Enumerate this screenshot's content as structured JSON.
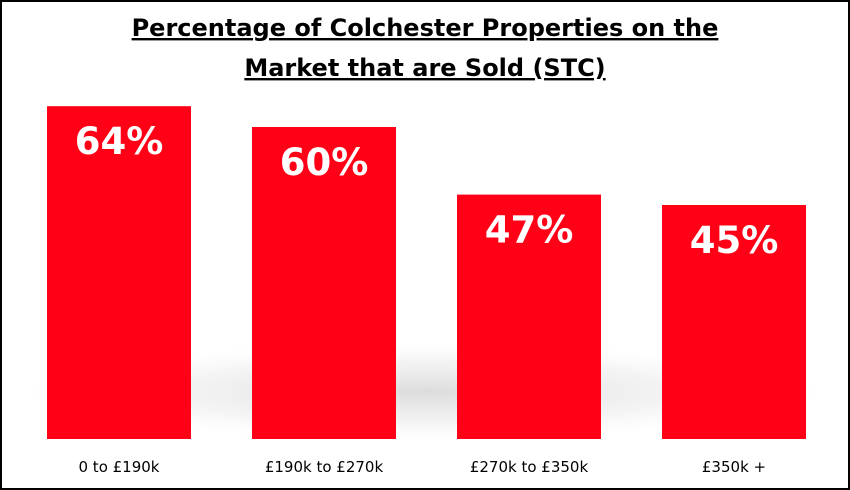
{
  "chart_data": {
    "type": "bar",
    "title_lines": [
      "Percentage of Colchester Properties on the",
      "Market that are Sold (STC)"
    ],
    "categories": [
      "0 to £190k",
      "£190k to £270k",
      "£270k to £350k",
      "£350k +"
    ],
    "values": [
      64,
      60,
      47,
      45
    ],
    "data_labels": [
      "64%",
      "60%",
      "47%",
      "45%"
    ],
    "xlabel": "",
    "ylabel": "",
    "ylim": [
      0,
      100
    ],
    "unit": "%",
    "grid": false,
    "legend": "none",
    "bar_color": "#ff0016",
    "background_color": "#ffffff"
  }
}
